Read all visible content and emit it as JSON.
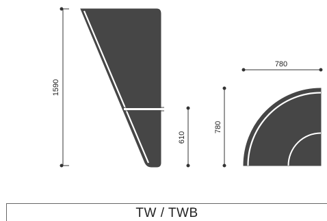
{
  "title": "TW / TWB",
  "dimensions": {
    "overall_height": "1590",
    "lower_section_height": "610",
    "corner_height": "780",
    "corner_width": "780"
  },
  "colors": {
    "panel_fill": "#464646",
    "panel_stripe": "#ffffff",
    "dimension_line": "#333333",
    "frame_line": "#666666"
  }
}
